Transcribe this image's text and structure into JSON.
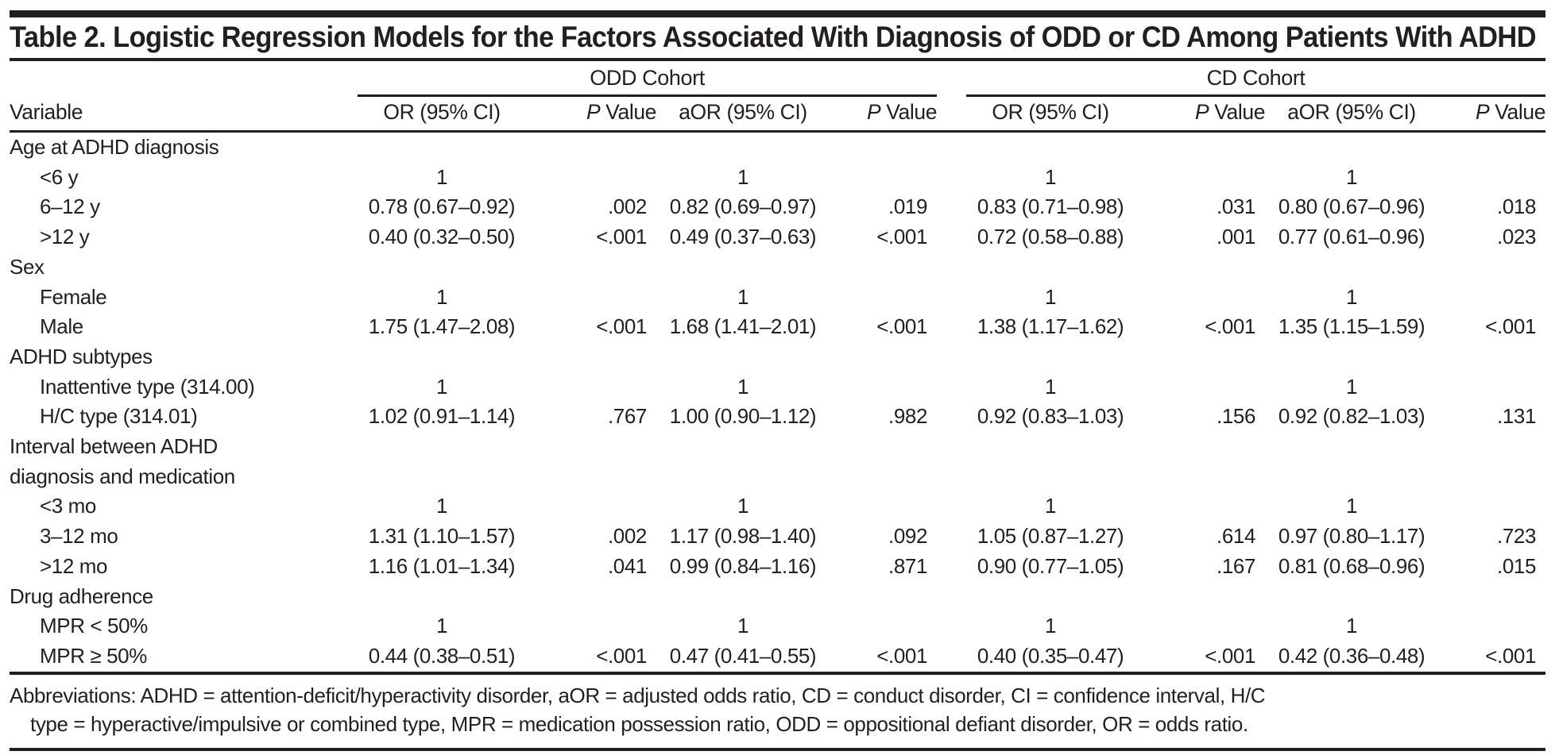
{
  "title": "Table 2. Logistic Regression Models for the Factors Associated With Diagnosis of ODD or CD Among Patients With ADHD",
  "table": {
    "variable_header": "Variable",
    "groups": [
      {
        "label": "ODD Cohort"
      },
      {
        "label": "CD Cohort"
      }
    ],
    "column_headers": [
      "OR (95% CI)",
      "P Value",
      "aOR (95% CI)",
      "P Value",
      "OR (95% CI)",
      "P Value",
      "aOR (95% CI)",
      "P Value"
    ],
    "rows": [
      {
        "type": "section",
        "label": "Age at ADHD diagnosis"
      },
      {
        "type": "item",
        "label": "<6 y",
        "cells": [
          "1",
          "",
          "1",
          "",
          "1",
          "",
          "1",
          ""
        ]
      },
      {
        "type": "item",
        "label": "6–12 y",
        "cells": [
          "0.78 (0.67–0.92)",
          ".002",
          "0.82 (0.69–0.97)",
          ".019",
          "0.83 (0.71–0.98)",
          ".031",
          "0.80 (0.67–0.96)",
          ".018"
        ]
      },
      {
        "type": "item",
        "label": ">12 y",
        "cells": [
          "0.40 (0.32–0.50)",
          "<.001",
          "0.49 (0.37–0.63)",
          "<.001",
          "0.72 (0.58–0.88)",
          ".001",
          "0.77 (0.61–0.96)",
          ".023"
        ]
      },
      {
        "type": "section",
        "label": "Sex"
      },
      {
        "type": "item",
        "label": "Female",
        "cells": [
          "1",
          "",
          "1",
          "",
          "1",
          "",
          "1",
          ""
        ]
      },
      {
        "type": "item",
        "label": "Male",
        "cells": [
          "1.75 (1.47–2.08)",
          "<.001",
          "1.68 (1.41–2.01)",
          "<.001",
          "1.38 (1.17–1.62)",
          "<.001",
          "1.35 (1.15–1.59)",
          "<.001"
        ]
      },
      {
        "type": "section",
        "label": "ADHD subtypes"
      },
      {
        "type": "item",
        "label": "Inattentive type (314.00)",
        "cells": [
          "1",
          "",
          "1",
          "",
          "1",
          "",
          "1",
          ""
        ]
      },
      {
        "type": "item",
        "label": "H/C type (314.01)",
        "cells": [
          "1.02 (0.91–1.14)",
          ".767",
          "1.00 (0.90–1.12)",
          ".982",
          "0.92 (0.83–1.03)",
          ".156",
          "0.92 (0.82–1.03)",
          ".131"
        ]
      },
      {
        "type": "section",
        "label": "Interval between ADHD\ndiagnosis and medication"
      },
      {
        "type": "item",
        "label": "<3 mo",
        "cells": [
          "1",
          "",
          "1",
          "",
          "1",
          "",
          "1",
          ""
        ]
      },
      {
        "type": "item",
        "label": "3–12 mo",
        "cells": [
          "1.31 (1.10–1.57)",
          ".002",
          "1.17 (0.98–1.40)",
          ".092",
          "1.05 (0.87–1.27)",
          ".614",
          "0.97 (0.80–1.17)",
          ".723"
        ]
      },
      {
        "type": "item",
        "label": ">12 mo",
        "cells": [
          "1.16 (1.01–1.34)",
          ".041",
          "0.99 (0.84–1.16)",
          ".871",
          "0.90 (0.77–1.05)",
          ".167",
          "0.81 (0.68–0.96)",
          ".015"
        ]
      },
      {
        "type": "section",
        "label": "Drug adherence"
      },
      {
        "type": "item",
        "label": "MPR < 50%",
        "cells": [
          "1",
          "",
          "1",
          "",
          "1",
          "",
          "1",
          ""
        ]
      },
      {
        "type": "item",
        "label": "MPR ≥ 50%",
        "cells": [
          "0.44 (0.38–0.51)",
          "<.001",
          "0.47 (0.41–0.55)",
          "<.001",
          "0.40 (0.35–0.47)",
          "<.001",
          "0.42 (0.36–0.48)",
          "<.001"
        ]
      }
    ]
  },
  "footnote": {
    "lines": [
      "Abbreviations: ADHD = attention-deficit/hyperactivity disorder, aOR = adjusted odds ratio, CD = conduct disorder, CI = confidence interval, H/C",
      "type = hyperactive/impulsive or combined type, MPR = medication possession ratio, ODD = oppositional defiant disorder, OR = odds ratio."
    ]
  },
  "colors": {
    "ink": "#231f20",
    "background": "#ffffff"
  }
}
